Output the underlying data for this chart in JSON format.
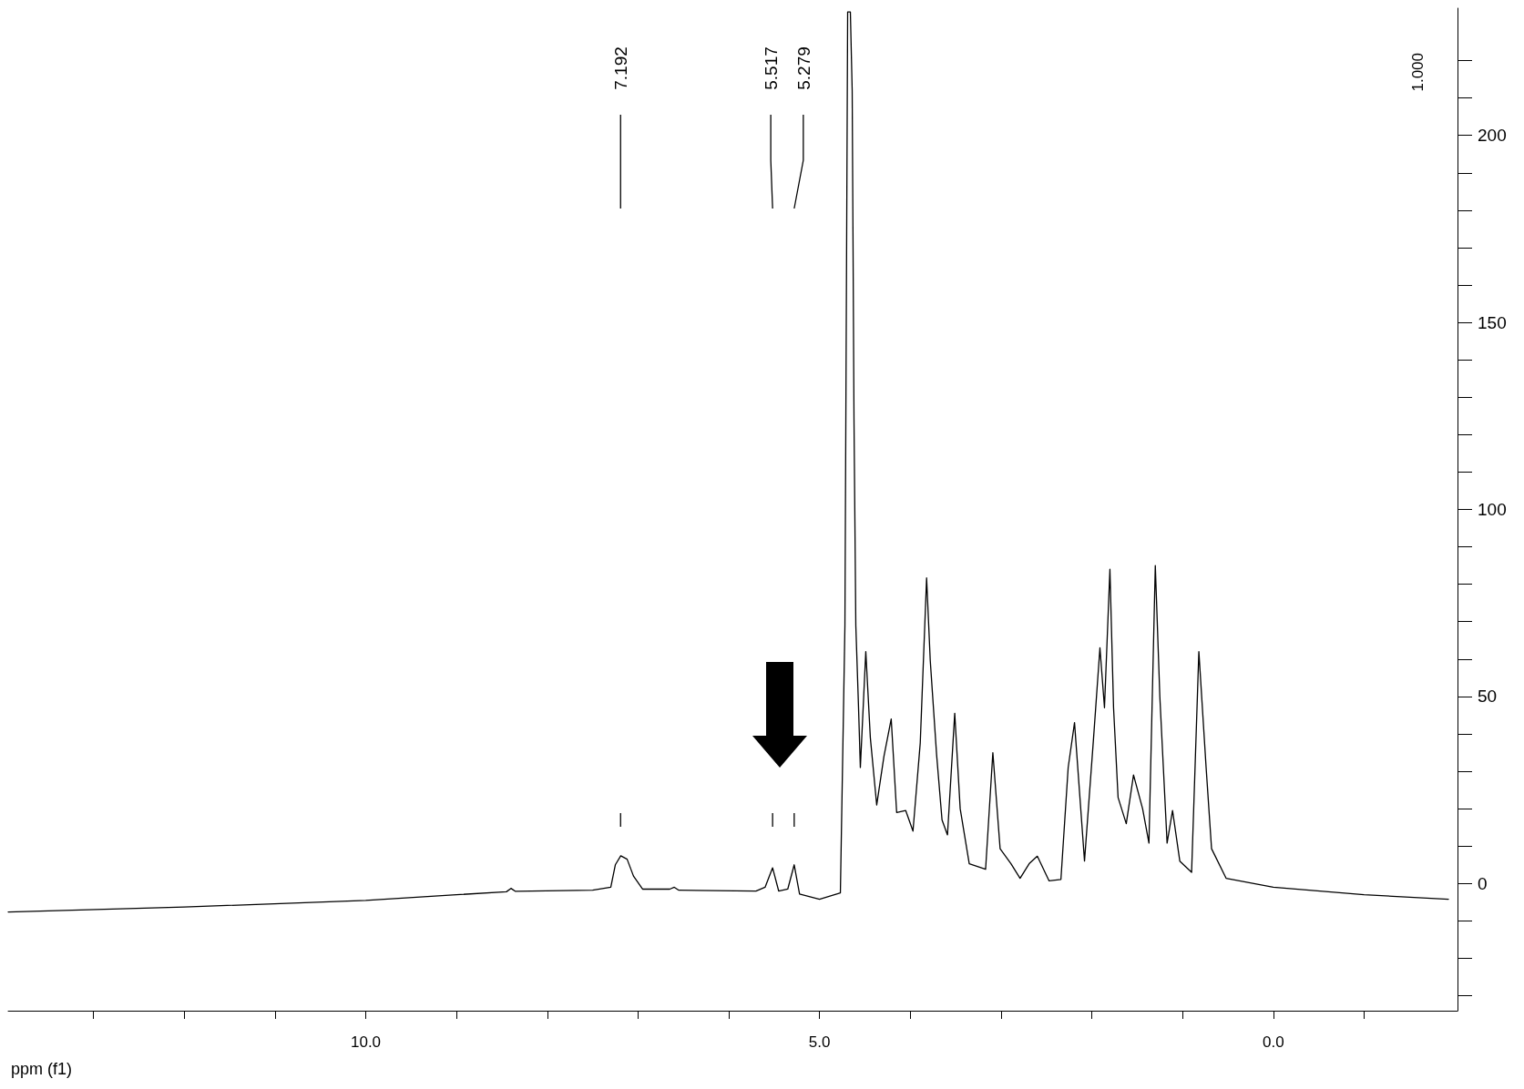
{
  "chart_data": {
    "type": "line",
    "xlabel": "ppm (f1)",
    "x": [
      13.94,
      12,
      10,
      9,
      8.45,
      8.4,
      8.35,
      7.5,
      7.3,
      7.25,
      7.19,
      7.12,
      7.05,
      6.95,
      6.65,
      6.6,
      6.55,
      5.7,
      5.6,
      5.517,
      5.45,
      5.35,
      5.279,
      5.22,
      5.0,
      4.77,
      4.72,
      4.69,
      4.66,
      4.64,
      4.62,
      4.6,
      4.57,
      4.55,
      4.49,
      4.44,
      4.37,
      4.29,
      4.21,
      4.15,
      4.05,
      3.97,
      3.89,
      3.82,
      3.78,
      3.71,
      3.65,
      3.59,
      3.51,
      3.45,
      3.35,
      3.17,
      3.09,
      3.01,
      2.89,
      2.79,
      2.69,
      2.6,
      2.47,
      2.34,
      2.26,
      2.19,
      2.08,
      1.98,
      1.91,
      1.86,
      1.8,
      1.76,
      1.71,
      1.62,
      1.54,
      1.44,
      1.37,
      1.3,
      1.25,
      1.17,
      1.11,
      1.03,
      0.9,
      0.82,
      0.74,
      0.68,
      0.52,
      0,
      -1,
      -1.93
    ],
    "series": [
      {
        "color": "#000000",
        "values": [
          -7.6,
          -6.3,
          -4.5,
          -3,
          -2.2,
          -1.3,
          -2.1,
          -1.8,
          -1,
          5,
          7.4,
          6.5,
          2,
          -1.5,
          -1.5,
          -1,
          -1.8,
          -2,
          -1,
          4.2,
          -2,
          -1.5,
          5,
          -2.8,
          -4.2,
          -2.5,
          69,
          233,
          233,
          212,
          124,
          69,
          47,
          31,
          62,
          39,
          21,
          34,
          44,
          19,
          19.5,
          14,
          37.6,
          81.7,
          59.7,
          34.5,
          17,
          13,
          45.5,
          20,
          5.3,
          3.8,
          35,
          9.3,
          5.3,
          1.4,
          5.3,
          7.3,
          0.7,
          1.1,
          31,
          43,
          6,
          39,
          63,
          47,
          84,
          47,
          23,
          16,
          29,
          20,
          10.8,
          85,
          50,
          10.8,
          19.5,
          6,
          3,
          62,
          31,
          9.3,
          1.4,
          -1,
          -3,
          -4.2
        ]
      }
    ],
    "xlim": [
      13.94,
      -2.03
    ],
    "xticks": [
      {
        "value": 13,
        "label": null
      },
      {
        "value": 12,
        "label": null
      },
      {
        "value": 11,
        "label": null
      },
      {
        "value": 10,
        "label": "10.0"
      },
      {
        "value": 9,
        "label": null
      },
      {
        "value": 8,
        "label": null
      },
      {
        "value": 7,
        "label": null
      },
      {
        "value": 6,
        "label": null
      },
      {
        "value": 5,
        "label": "5.0"
      },
      {
        "value": 4,
        "label": null
      },
      {
        "value": 3,
        "label": null
      },
      {
        "value": 2,
        "label": null
      },
      {
        "value": 1,
        "label": null
      },
      {
        "value": 0,
        "label": "0.0"
      },
      {
        "value": -1,
        "label": null
      }
    ],
    "ylim": [
      -34,
      234
    ],
    "yticks": [
      {
        "value": -30,
        "label": null
      },
      {
        "value": -20,
        "label": null
      },
      {
        "value": -10,
        "label": null
      },
      0,
      {
        "value": 10,
        "label": null
      },
      {
        "value": 20,
        "label": null
      },
      {
        "value": 30,
        "label": null
      },
      {
        "value": 40,
        "label": null
      },
      50,
      {
        "value": 60,
        "label": null
      },
      {
        "value": 70,
        "label": null
      },
      {
        "value": 80,
        "label": null
      },
      {
        "value": 90,
        "label": null
      },
      100,
      {
        "value": 110,
        "label": null
      },
      {
        "value": 120,
        "label": null
      },
      {
        "value": 130,
        "label": null
      },
      {
        "value": 140,
        "label": null
      },
      150,
      {
        "value": 160,
        "label": null
      },
      {
        "value": 170,
        "label": null
      },
      {
        "value": 180,
        "label": null
      },
      {
        "value": 190,
        "label": null
      },
      200,
      {
        "value": 210,
        "label": null
      },
      {
        "value": 220,
        "label": null
      }
    ],
    "annotations": [
      "7.192",
      "5.517",
      "5.279",
      "1.000"
    ],
    "marker": "none",
    "line_style": "solid"
  }
}
